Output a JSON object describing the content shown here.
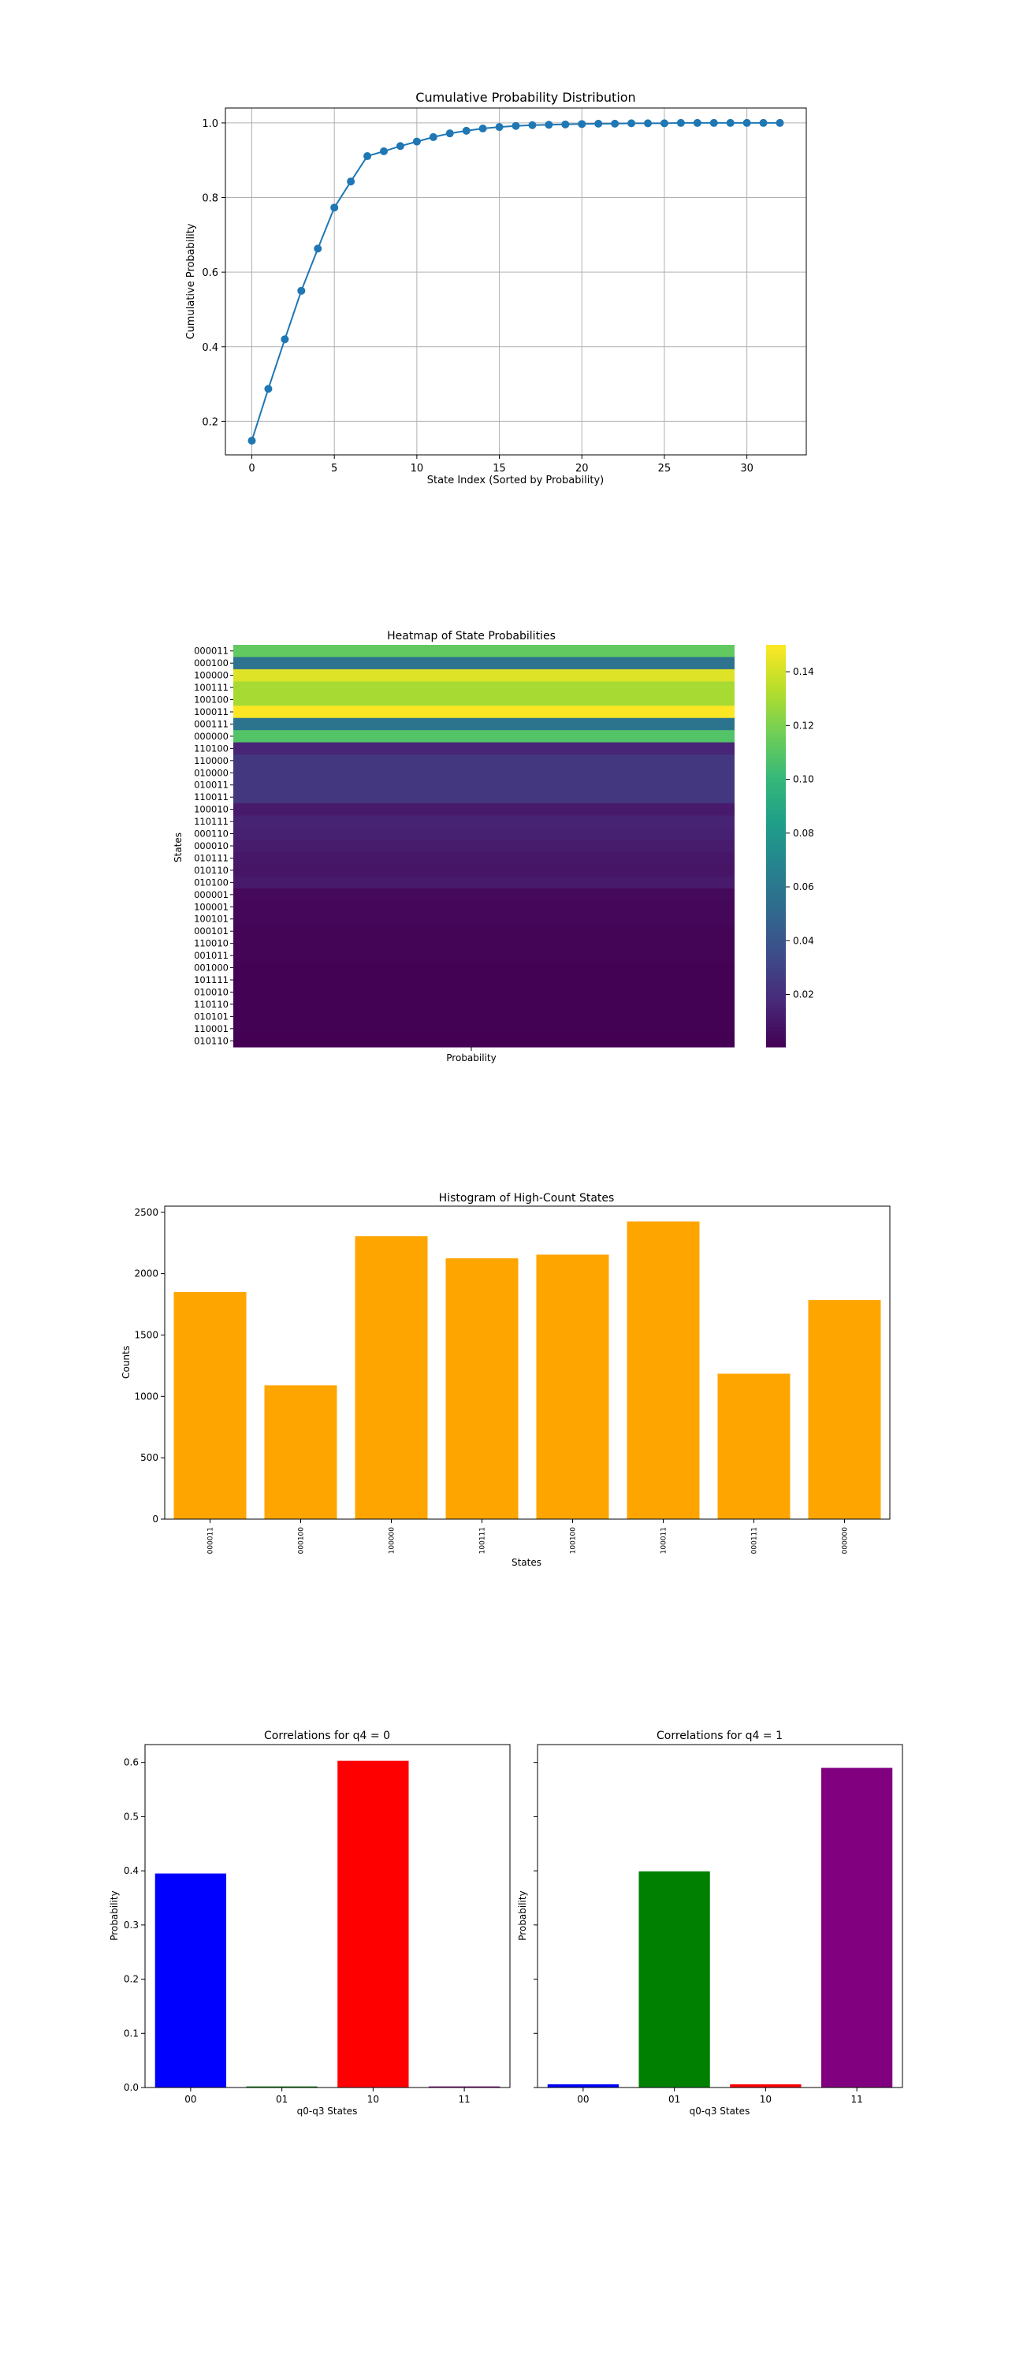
{
  "chart_data": [
    {
      "type": "line",
      "title": "Cumulative Probability Distribution",
      "xlabel": "State Index (Sorted by Probability)",
      "ylabel": "Cumulative Probability",
      "x": [
        0,
        1,
        2,
        3,
        4,
        5,
        6,
        7,
        8,
        9,
        10,
        11,
        12,
        13,
        14,
        15,
        16,
        17,
        18,
        19,
        20,
        21,
        22,
        23,
        24,
        25,
        26,
        27,
        28,
        29,
        30,
        31,
        32
      ],
      "values": [
        0.148,
        0.287,
        0.42,
        0.55,
        0.663,
        0.773,
        0.843,
        0.911,
        0.924,
        0.938,
        0.95,
        0.962,
        0.972,
        0.979,
        0.985,
        0.989,
        0.992,
        0.994,
        0.995,
        0.996,
        0.997,
        0.998,
        0.998,
        0.999,
        0.999,
        0.999,
        1.0,
        1.0,
        1.0,
        1.0,
        1.0,
        1.0,
        1.0
      ],
      "xlim": [
        -1.6,
        33.6
      ],
      "ylim": [
        0.11,
        1.04
      ],
      "xticks": [
        "0",
        "5",
        "10",
        "15",
        "20",
        "25",
        "30"
      ],
      "yticks": [
        "0.2",
        "0.4",
        "0.6",
        "0.8",
        "1.0"
      ],
      "grid": true,
      "color": "#1f77b4"
    },
    {
      "type": "heatmap",
      "title": "Heatmap of State Probabilities",
      "xlabel": "Probability",
      "ylabel": "States",
      "categories": [
        "000011",
        "000100",
        "100000",
        "100111",
        "100100",
        "100011",
        "000111",
        "000000",
        "110100",
        "110000",
        "010000",
        "010011",
        "110011",
        "100010",
        "110111",
        "000110",
        "000010",
        "010111",
        "010110",
        "010100",
        "000001",
        "100001",
        "100101",
        "000101",
        "110010",
        "001011",
        "001000",
        "101111",
        "010010",
        "110110",
        "010101",
        "110001",
        "010110"
      ],
      "values": [
        0.113,
        0.057,
        0.143,
        0.13,
        0.13,
        0.15,
        0.058,
        0.109,
        0.016,
        0.025,
        0.025,
        0.025,
        0.025,
        0.011,
        0.015,
        0.014,
        0.012,
        0.01,
        0.009,
        0.011,
        0.004,
        0.003,
        0.003,
        0.002,
        0.002,
        0.002,
        0.001,
        0.001,
        0.001,
        0.001,
        0.001,
        0.001,
        0.0005
      ],
      "colorbar_ticks": [
        "0.02",
        "0.04",
        "0.06",
        "0.08",
        "0.10",
        "0.12",
        "0.14"
      ],
      "colorscale": "viridis",
      "vrange": [
        0.0005,
        0.15
      ]
    },
    {
      "type": "bar",
      "title": "Histogram of High-Count States",
      "xlabel": "States",
      "ylabel": "Counts",
      "categories": [
        "000011",
        "000100",
        "100000",
        "100111",
        "100100",
        "100011",
        "000111",
        "000000"
      ],
      "values": [
        1850,
        1090,
        2305,
        2125,
        2155,
        2425,
        1185,
        1785
      ],
      "ylim": [
        0,
        2550
      ],
      "yticks": [
        "0",
        "500",
        "1000",
        "1500",
        "2000",
        "2500"
      ],
      "color": "#ffa500"
    },
    {
      "type": "bar",
      "title": "Correlations for q4 = 0",
      "xlabel": "q0-q3 States",
      "ylabel": "Probability",
      "categories": [
        "00",
        "01",
        "10",
        "11"
      ],
      "values": [
        0.395,
        0.002,
        0.603,
        0.002
      ],
      "colors": [
        "#0000ff",
        "#008000",
        "#ff0000",
        "#800080"
      ],
      "ylim": [
        0,
        0.633
      ],
      "yticks": [
        "0.0",
        "0.1",
        "0.2",
        "0.3",
        "0.4",
        "0.5",
        "0.6"
      ]
    },
    {
      "type": "bar",
      "title": "Correlations for q4 = 1",
      "xlabel": "q0-q3 States",
      "ylabel": "Probability",
      "categories": [
        "00",
        "01",
        "10",
        "11"
      ],
      "values": [
        0.006,
        0.399,
        0.006,
        0.59
      ],
      "colors": [
        "#0000ff",
        "#008000",
        "#ff0000",
        "#800080"
      ],
      "ylim": [
        0,
        0.633
      ]
    }
  ]
}
